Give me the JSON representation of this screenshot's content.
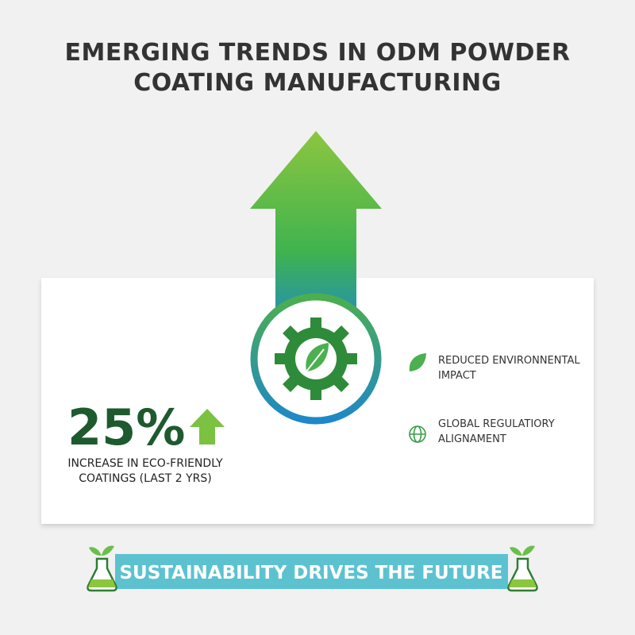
{
  "header": {
    "title_lines": [
      "EMERGING TRENDS IN ODM POWDER",
      "COATING MANUFACTURING"
    ]
  },
  "stat": {
    "value": "25%",
    "label_lines": [
      "INCREASE IN ECO-FRIENDLY",
      "COATINGS (LAST 2 YRS)"
    ]
  },
  "features": [
    {
      "lines": [
        "REDUCED ENVIRONNENTAL",
        "IMPACT"
      ]
    },
    {
      "lines": [
        "GLOBAL REGULATIORY",
        "ALIGNAMENT"
      ]
    }
  ],
  "banner": {
    "text": "SUSTAINABILITY DRIVES THE FUTURE"
  }
}
